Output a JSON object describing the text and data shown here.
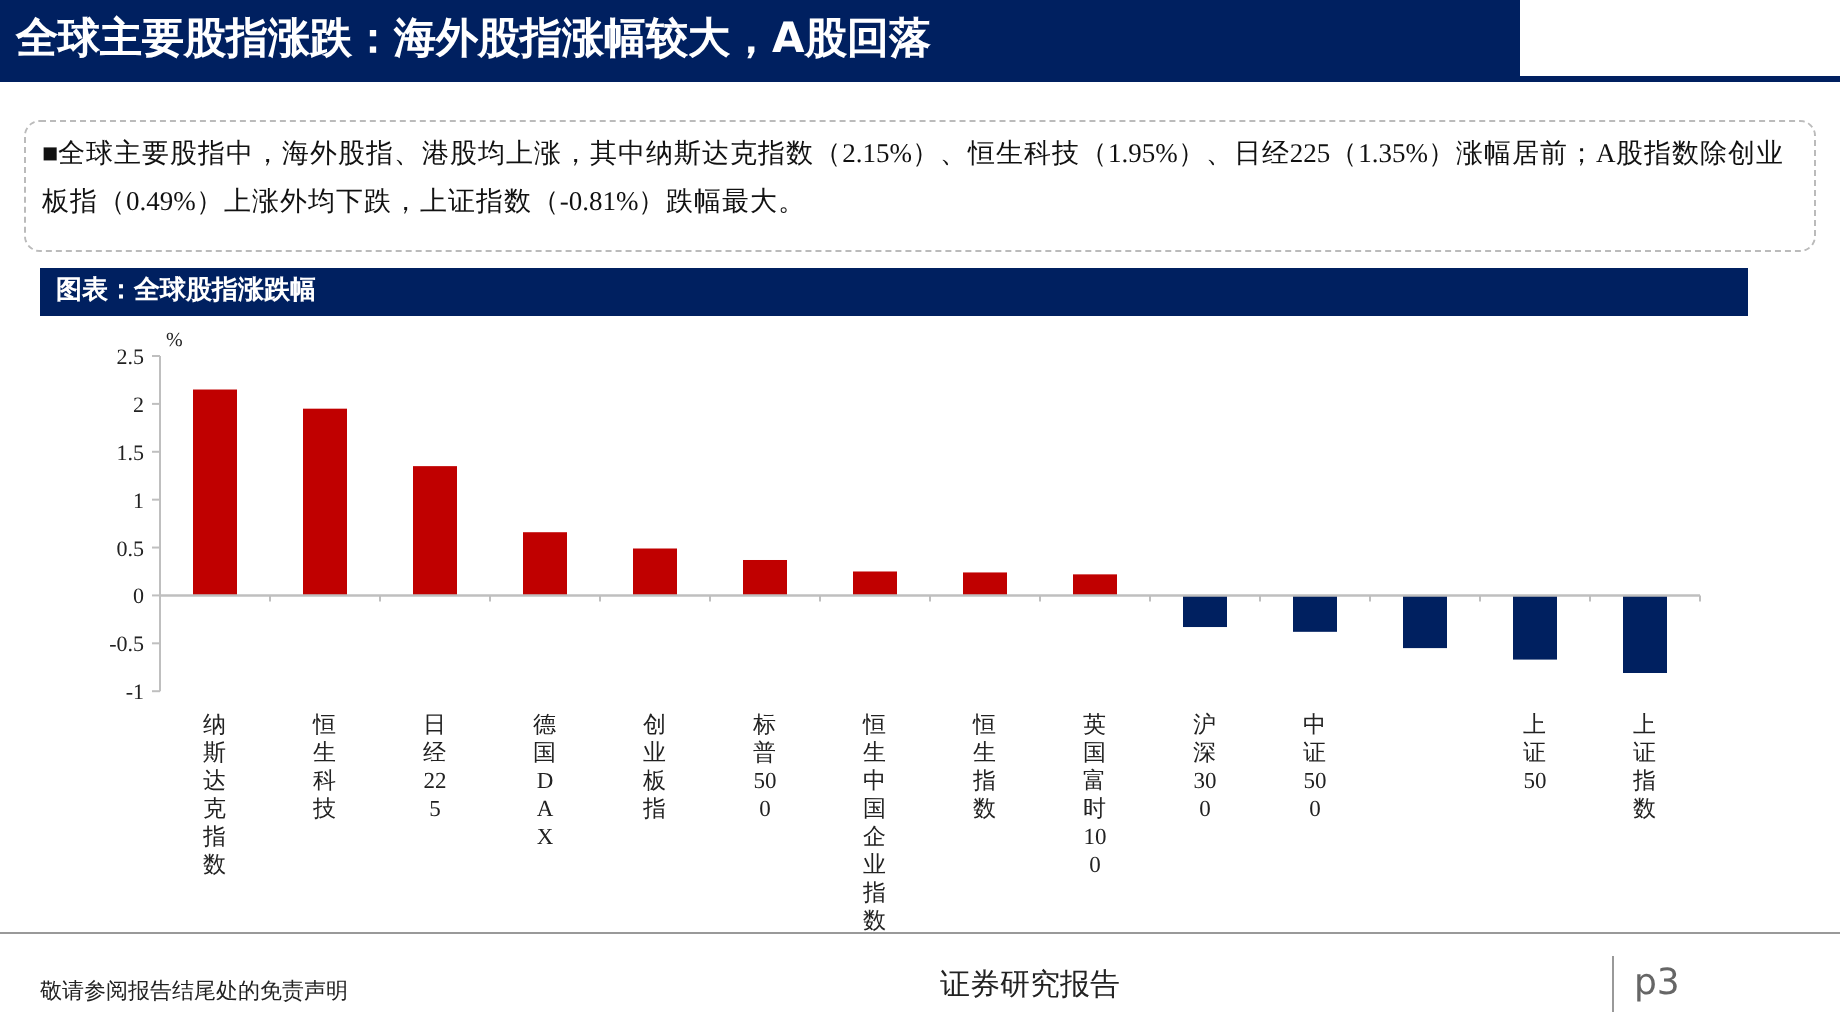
{
  "chart_data": {
    "type": "bar",
    "title": "全球主要股指涨跌：海外股指涨幅较大，A股回落",
    "subtitle": "图表：全球股指涨跌幅",
    "ylabel": "%",
    "categories": [
      "纳斯达克指数",
      "恒生科技",
      "日经225",
      "德国DAX",
      "创业板指",
      "标普500",
      "恒生中国企业指数",
      "恒生指数",
      "英国富时100",
      "沪深300",
      "中证500",
      null,
      "上证50",
      "上证指数"
    ],
    "values": [
      2.15,
      1.95,
      1.35,
      0.66,
      0.49,
      0.37,
      0.25,
      0.24,
      0.22,
      -0.33,
      -0.38,
      -0.55,
      -0.67,
      -0.81
    ],
    "colors": [
      "#c00000",
      "#c00000",
      "#c00000",
      "#c00000",
      "#c00000",
      "#c00000",
      "#c00000",
      "#c00000",
      "#c00000",
      "#002060",
      "#002060",
      "#002060",
      "#002060",
      "#002060"
    ],
    "ylim": [
      -1,
      2.5
    ],
    "yticks": [
      -1,
      -0.5,
      0,
      0.5,
      1,
      1.5,
      2,
      2.5
    ],
    "annotations": [
      "■全球主要股指中，海外股指、港股均上涨，其中纳斯达克指数（2.15%）、恒生科技（1.95%）、日经225（1.35%）涨幅居前；A股指数除创业板指（0.49%）上涨外均下跌，上证指数（-0.81%）跌幅最大。",
      "敬请参阅报告结尾处的免责声明",
      "证券研究报告",
      "p3"
    ]
  }
}
